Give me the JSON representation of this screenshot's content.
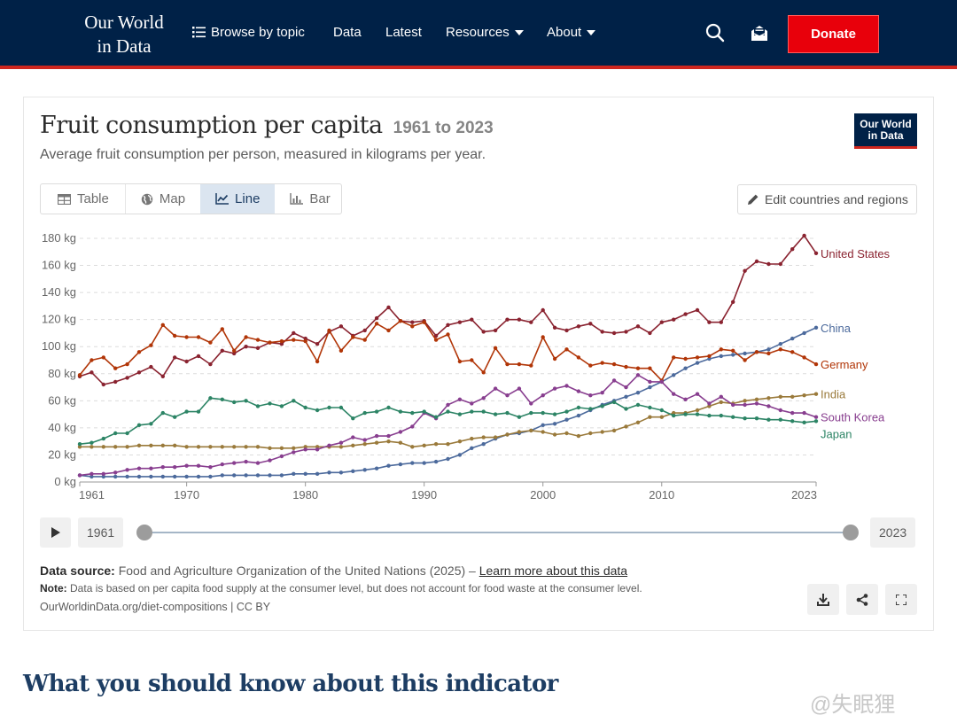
{
  "nav": {
    "logo_line1": "Our World",
    "logo_line2": "in Data",
    "browse": "Browse by topic",
    "data": "Data",
    "latest": "Latest",
    "resources": "Resources",
    "about": "About",
    "donate": "Donate",
    "search_icon": "search-icon",
    "subscribe_icon": "mailbox-icon"
  },
  "card": {
    "title": "Fruit consumption per capita",
    "title_range": "1961 to 2023",
    "subtitle": "Average fruit consumption per person, measured in kilograms per year.",
    "logo_line1": "Our World",
    "logo_line2": "in Data",
    "tabs": [
      {
        "label": "Table",
        "icon": "table-icon"
      },
      {
        "label": "Map",
        "icon": "globe-icon"
      },
      {
        "label": "Line",
        "icon": "line-chart-icon"
      },
      {
        "label": "Bar",
        "icon": "bar-chart-icon"
      }
    ],
    "active_tab": "Line",
    "edit_label": "Edit countries and regions"
  },
  "timeline": {
    "start": "1961",
    "end": "2023"
  },
  "footer": {
    "source_label": "Data source:",
    "source_text": "Food and Agriculture Organization of the United Nations (2025) – ",
    "source_link": "Learn more about this data",
    "note_label": "Note:",
    "note_text": "Data is based on per capita food supply at the consumer level, but does not account for food waste at the consumer level.",
    "url": "OurWorldinData.org/diet-compositions | CC BY"
  },
  "section_title": "What you should know about this indicator",
  "watermark": "@失眠狸",
  "chart_data": {
    "type": "line",
    "x_start": 1961,
    "x_end": 2023,
    "ylim": [
      0,
      180
    ],
    "y_ticks": [
      0,
      20,
      40,
      60,
      80,
      100,
      120,
      140,
      160,
      180
    ],
    "y_unit": "kg",
    "x_ticks": [
      1961,
      1970,
      1980,
      1990,
      2000,
      2010,
      2023
    ],
    "grid": "horizontal dashed",
    "series": [
      {
        "name": "United States",
        "color": "#8a2330",
        "values": [
          78,
          81,
          72,
          74,
          77,
          81,
          85,
          78,
          92,
          89,
          93,
          87,
          97,
          95,
          100,
          99,
          103,
          102,
          110,
          106,
          102,
          111,
          115,
          108,
          112,
          121,
          129,
          119,
          118,
          119,
          108,
          116,
          118,
          120,
          111,
          112,
          120,
          120,
          118,
          127,
          114,
          112,
          115,
          117,
          111,
          110,
          111,
          115,
          110,
          118,
          120,
          124,
          127,
          118,
          118,
          133,
          156,
          163,
          161,
          161,
          172,
          182,
          169
        ]
      },
      {
        "name": "China",
        "color": "#4c6a9c",
        "values": [
          5,
          4,
          4,
          4,
          4,
          4,
          4,
          4,
          4,
          4,
          4,
          4,
          5,
          5,
          5,
          5,
          5,
          5,
          6,
          6,
          6,
          7,
          7,
          8,
          9,
          10,
          12,
          13,
          14,
          14,
          15,
          17,
          20,
          25,
          28,
          32,
          35,
          36,
          38,
          42,
          43,
          46,
          49,
          53,
          57,
          60,
          63,
          66,
          70,
          74,
          79,
          84,
          88,
          91,
          93,
          94,
          95,
          96,
          98,
          102,
          106,
          110,
          114
        ]
      },
      {
        "name": "Germany",
        "color": "#b13507",
        "values": [
          79,
          90,
          92,
          84,
          87,
          96,
          101,
          116,
          108,
          107,
          107,
          103,
          113,
          97,
          107,
          105,
          103,
          104,
          105,
          104,
          89,
          112,
          97,
          107,
          105,
          117,
          112,
          119,
          115,
          118,
          105,
          109,
          89,
          90,
          81,
          99,
          87,
          87,
          86,
          107,
          91,
          98,
          92,
          86,
          88,
          87,
          85,
          84,
          84,
          75,
          92,
          91,
          92,
          93,
          98,
          97,
          90,
          96,
          95,
          98,
          96,
          92,
          87
        ]
      },
      {
        "name": "India",
        "color": "#9a7a3b",
        "values": [
          26,
          26,
          26,
          26,
          26,
          27,
          27,
          27,
          27,
          26,
          26,
          26,
          26,
          26,
          26,
          26,
          25,
          25,
          25,
          26,
          26,
          26,
          26,
          27,
          28,
          29,
          30,
          29,
          26,
          27,
          28,
          28,
          30,
          32,
          33,
          33,
          35,
          37,
          38,
          37,
          35,
          36,
          34,
          36,
          37,
          38,
          41,
          44,
          48,
          48,
          51,
          51,
          53,
          56,
          59,
          58,
          60,
          61,
          62,
          63,
          63,
          64,
          65
        ]
      },
      {
        "name": "South Korea",
        "color": "#883e8f",
        "values": [
          5,
          6,
          6,
          7,
          9,
          10,
          10,
          11,
          11,
          12,
          12,
          11,
          13,
          14,
          15,
          14,
          16,
          19,
          22,
          24,
          24,
          27,
          29,
          33,
          31,
          34,
          34,
          37,
          41,
          51,
          47,
          57,
          61,
          58,
          62,
          69,
          64,
          69,
          58,
          64,
          69,
          71,
          67,
          64,
          66,
          75,
          70,
          79,
          74,
          74,
          65,
          61,
          65,
          58,
          63,
          57,
          57,
          58,
          56,
          53,
          51,
          51,
          48
        ]
      },
      {
        "name": "Japan",
        "color": "#2c8465",
        "values": [
          28,
          29,
          32,
          36,
          36,
          42,
          43,
          51,
          48,
          52,
          52,
          62,
          61,
          59,
          60,
          56,
          58,
          56,
          60,
          55,
          53,
          55,
          55,
          47,
          51,
          52,
          55,
          52,
          51,
          52,
          48,
          52,
          50,
          52,
          52,
          50,
          51,
          48,
          51,
          51,
          50,
          52,
          55,
          54,
          56,
          59,
          54,
          57,
          55,
          53,
          49,
          50,
          50,
          49,
          49,
          48,
          47,
          47,
          46,
          46,
          45,
          44,
          45
        ]
      }
    ]
  }
}
